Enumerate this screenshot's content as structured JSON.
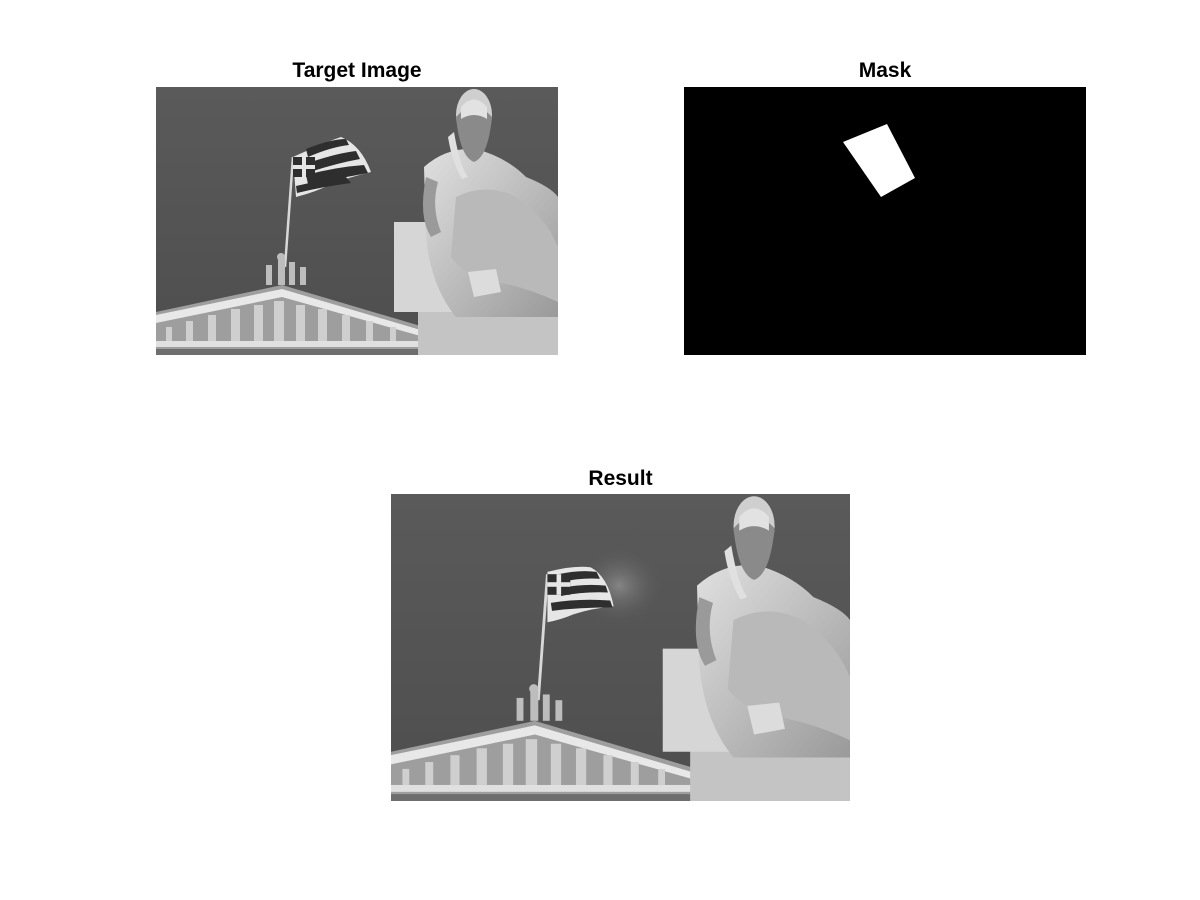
{
  "figure": {
    "background": "#ffffff",
    "panels": {
      "target": {
        "title": "Target Image",
        "content": "grayscale photograph: seated philosopher statue in front of a building pediment with a waving striped flag on a pole"
      },
      "mask": {
        "title": "Mask",
        "content": "binary mask: black background with a single white tilted quadrilateral",
        "background_color": "#000000",
        "region_color": "#ffffff"
      },
      "result": {
        "title": "Result",
        "content": "grayscale photograph: same scene with the flag region blended onto a different placement"
      }
    },
    "palette": {
      "sky": "#555555",
      "stone": "#c9c9c9",
      "stone_shadow": "#7a7a7a",
      "dark": "#222222"
    }
  }
}
